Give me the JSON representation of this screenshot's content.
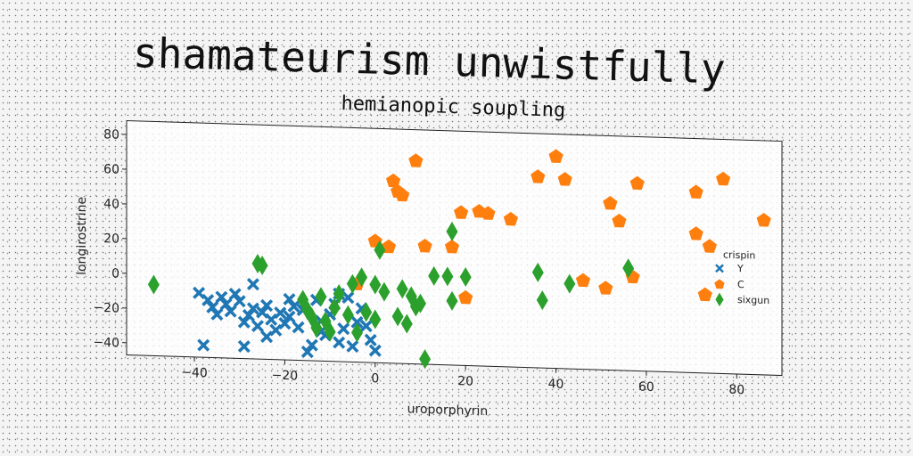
{
  "title": "shamateurism unwistfully",
  "chart_data": {
    "type": "scatter",
    "title": "hemianopic soupling",
    "xlabel": "uroporphyrin",
    "ylabel": "longirostrine",
    "xlim": [
      -55,
      90
    ],
    "ylim": [
      -47,
      88
    ],
    "xticks": [
      -40,
      -20,
      0,
      20,
      40,
      60,
      80
    ],
    "yticks": [
      -40,
      -20,
      0,
      20,
      40,
      60,
      80
    ],
    "grid": false,
    "legend": {
      "title": "crispin",
      "placement": "right"
    },
    "series": [
      {
        "name": "Y",
        "marker": "x",
        "color": "#1f77b4",
        "points": [
          [
            -39,
            -10
          ],
          [
            -37,
            -14
          ],
          [
            -36,
            -18
          ],
          [
            -35,
            -22
          ],
          [
            -34,
            -12
          ],
          [
            -33,
            -16
          ],
          [
            -32,
            -20
          ],
          [
            -31,
            -10
          ],
          [
            -30,
            -14
          ],
          [
            -29,
            -26
          ],
          [
            -28,
            -22
          ],
          [
            -27,
            -18
          ],
          [
            -27,
            -4
          ],
          [
            -26,
            -28
          ],
          [
            -25,
            -20
          ],
          [
            -24,
            -16
          ],
          [
            -23,
            -24
          ],
          [
            -22,
            -30
          ],
          [
            -21,
            -20
          ],
          [
            -20,
            -26
          ],
          [
            -19,
            -22
          ],
          [
            -18,
            -16
          ],
          [
            -17,
            -28
          ],
          [
            -16,
            -18
          ],
          [
            -15,
            -42
          ],
          [
            -14,
            -38
          ],
          [
            -13,
            -12
          ],
          [
            -12,
            -24
          ],
          [
            -11,
            -32
          ],
          [
            -10,
            -20
          ],
          [
            -9,
            -14
          ],
          [
            -8,
            -8
          ],
          [
            -8,
            -36
          ],
          [
            -7,
            -28
          ],
          [
            -6,
            -10
          ],
          [
            -5,
            -38
          ],
          [
            -4,
            -24
          ],
          [
            -3,
            -16
          ],
          [
            -2,
            -26
          ],
          [
            -1,
            -34
          ],
          [
            0,
            -40
          ],
          [
            -38,
            -40
          ],
          [
            -29,
            -40
          ],
          [
            -24,
            -34
          ],
          [
            -19,
            -12
          ],
          [
            -12,
            -30
          ]
        ]
      },
      {
        "name": "C",
        "marker": "pentagon",
        "color": "#ff7f0e",
        "points": [
          [
            -4,
            -2
          ],
          [
            0,
            23
          ],
          [
            3,
            20
          ],
          [
            4,
            58
          ],
          [
            5,
            52
          ],
          [
            6,
            50
          ],
          [
            9,
            70
          ],
          [
            11,
            21
          ],
          [
            17,
            21
          ],
          [
            19,
            41
          ],
          [
            20,
            -8
          ],
          [
            23,
            42
          ],
          [
            25,
            41
          ],
          [
            30,
            38
          ],
          [
            36,
            63
          ],
          [
            40,
            75
          ],
          [
            42,
            62
          ],
          [
            46,
            4
          ],
          [
            51,
            0
          ],
          [
            52,
            49
          ],
          [
            54,
            39
          ],
          [
            57,
            7
          ],
          [
            58,
            61
          ],
          [
            71,
            33
          ],
          [
            71,
            57
          ],
          [
            73,
            -2
          ],
          [
            74,
            26
          ],
          [
            77,
            65
          ],
          [
            86,
            42
          ]
        ]
      },
      {
        "name": "sixgun",
        "marker": "diamond",
        "color": "#2ca02c",
        "points": [
          [
            -49,
            -6
          ],
          [
            -26,
            8
          ],
          [
            -25,
            7
          ],
          [
            -16,
            -12
          ],
          [
            -15,
            -18
          ],
          [
            -14,
            -22
          ],
          [
            -13,
            -28
          ],
          [
            -12,
            -10
          ],
          [
            -11,
            -24
          ],
          [
            -10,
            -30
          ],
          [
            -9,
            -16
          ],
          [
            -8,
            -8
          ],
          [
            -6,
            -20
          ],
          [
            -5,
            -2
          ],
          [
            -4,
            -30
          ],
          [
            -3,
            2
          ],
          [
            -2,
            -18
          ],
          [
            0,
            -22
          ],
          [
            0,
            -2
          ],
          [
            1,
            18
          ],
          [
            2,
            -6
          ],
          [
            5,
            -20
          ],
          [
            6,
            -4
          ],
          [
            7,
            -24
          ],
          [
            8,
            -8
          ],
          [
            9,
            -14
          ],
          [
            10,
            -12
          ],
          [
            11,
            -44
          ],
          [
            13,
            4
          ],
          [
            16,
            4
          ],
          [
            17,
            -10
          ],
          [
            17,
            30
          ],
          [
            20,
            4
          ],
          [
            36,
            8
          ],
          [
            37,
            -8
          ],
          [
            43,
            2
          ],
          [
            56,
            12
          ]
        ]
      }
    ]
  }
}
